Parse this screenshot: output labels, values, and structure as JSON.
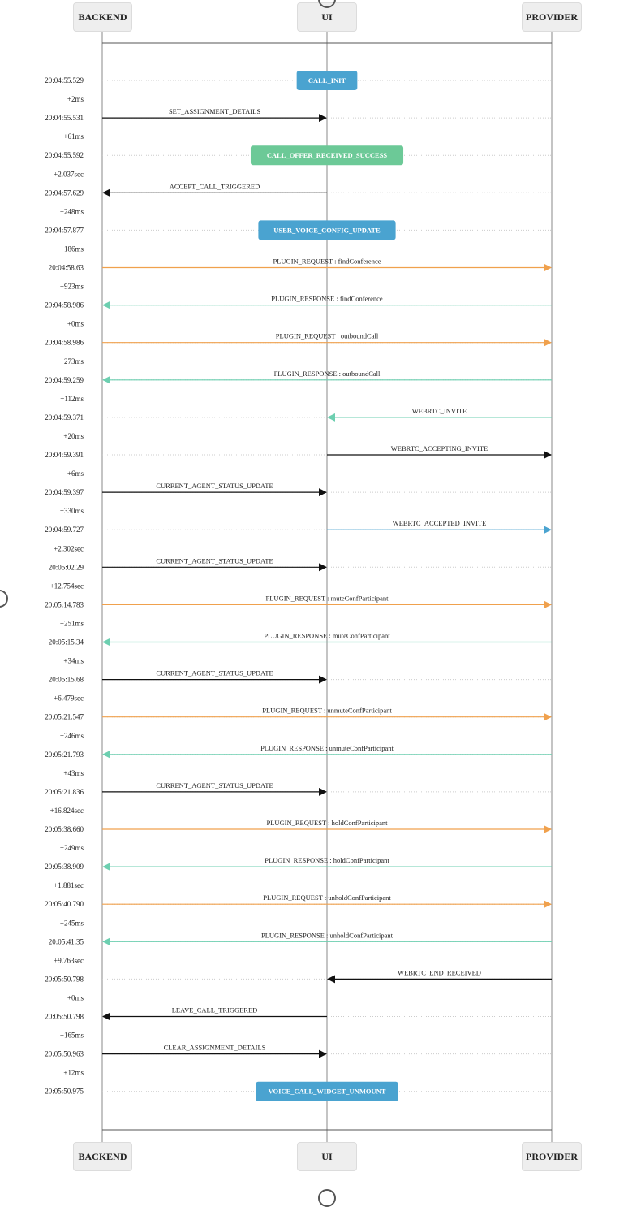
{
  "actors": [
    "BACKEND",
    "UI",
    "PROVIDER"
  ],
  "colors": {
    "request": "#f0a14d",
    "response": "#6dcfb0",
    "internal": "#111111",
    "event_blue": "#4aa3d0",
    "event_green": "#6cc997",
    "lifeline": "#888888",
    "grid": "#cccccc",
    "text": "#222222"
  },
  "rows": [
    {
      "time": "20:04:55.529",
      "delta": "",
      "type": "event",
      "actor": "UI",
      "label": "CALL_INIT",
      "color": "event_blue"
    },
    {
      "time": "20:04:55.531",
      "delta": "+2ms",
      "type": "msg",
      "from": "BACKEND",
      "to": "UI",
      "label": "SET_ASSIGNMENT_DETAILS",
      "color": "internal"
    },
    {
      "time": "20:04:55.592",
      "delta": "+61ms",
      "type": "event",
      "actor": "UI",
      "label": "CALL_OFFER_RECEIVED_SUCCESS",
      "color": "event_green"
    },
    {
      "time": "20:04:57.629",
      "delta": "+2.037sec",
      "type": "msg",
      "from": "UI",
      "to": "BACKEND",
      "label": "ACCEPT_CALL_TRIGGERED",
      "color": "internal"
    },
    {
      "time": "20:04:57.877",
      "delta": "+248ms",
      "type": "event",
      "actor": "UI",
      "label": "USER_VOICE_CONFIG_UPDATE",
      "color": "event_blue"
    },
    {
      "time": "20:04:58.63",
      "delta": "+186ms",
      "type": "msg",
      "from": "BACKEND",
      "to": "PROVIDER",
      "label": "PLUGIN_REQUEST : findConference",
      "color": "request"
    },
    {
      "time": "20:04:58.986",
      "delta": "+923ms",
      "type": "msg",
      "from": "PROVIDER",
      "to": "BACKEND",
      "label": "PLUGIN_RESPONSE : findConference",
      "color": "response"
    },
    {
      "time": "20:04:58.986",
      "delta": "+0ms",
      "type": "msg",
      "from": "BACKEND",
      "to": "PROVIDER",
      "label": "PLUGIN_REQUEST : outboundCall",
      "color": "request"
    },
    {
      "time": "20:04:59.259",
      "delta": "+273ms",
      "type": "msg",
      "from": "PROVIDER",
      "to": "BACKEND",
      "label": "PLUGIN_RESPONSE : outboundCall",
      "color": "response"
    },
    {
      "time": "20:04:59.371",
      "delta": "+112ms",
      "type": "msg",
      "from": "PROVIDER",
      "to": "UI",
      "label": "WEBRTC_INVITE",
      "color": "response"
    },
    {
      "time": "20:04:59.391",
      "delta": "+20ms",
      "type": "msg",
      "from": "UI",
      "to": "PROVIDER",
      "label": "WEBRTC_ACCEPTING_INVITE",
      "color": "internal"
    },
    {
      "time": "20:04:59.397",
      "delta": "+6ms",
      "type": "msg",
      "from": "BACKEND",
      "to": "UI",
      "label": "CURRENT_AGENT_STATUS_UPDATE",
      "color": "internal"
    },
    {
      "time": "20:04:59.727",
      "delta": "+330ms",
      "type": "msg",
      "from": "UI",
      "to": "PROVIDER",
      "label": "WEBRTC_ACCEPTED_INVITE",
      "color": "event_blue"
    },
    {
      "time": "20:05:02.29",
      "delta": "+2.302sec",
      "type": "msg",
      "from": "BACKEND",
      "to": "UI",
      "label": "CURRENT_AGENT_STATUS_UPDATE",
      "color": "internal"
    },
    {
      "time": "20:05:14.783",
      "delta": "+12.754sec",
      "type": "msg",
      "from": "BACKEND",
      "to": "PROVIDER",
      "label": "PLUGIN_REQUEST : muteConfParticipant",
      "color": "request"
    },
    {
      "time": "20:05:15.34",
      "delta": "+251ms",
      "type": "msg",
      "from": "PROVIDER",
      "to": "BACKEND",
      "label": "PLUGIN_RESPONSE : muteConfParticipant",
      "color": "response"
    },
    {
      "time": "20:05:15.68",
      "delta": "+34ms",
      "type": "msg",
      "from": "BACKEND",
      "to": "UI",
      "label": "CURRENT_AGENT_STATUS_UPDATE",
      "color": "internal"
    },
    {
      "time": "20:05:21.547",
      "delta": "+6.479sec",
      "type": "msg",
      "from": "BACKEND",
      "to": "PROVIDER",
      "label": "PLUGIN_REQUEST : unmuteConfParticipant",
      "color": "request"
    },
    {
      "time": "20:05:21.793",
      "delta": "+246ms",
      "type": "msg",
      "from": "PROVIDER",
      "to": "BACKEND",
      "label": "PLUGIN_RESPONSE : unmuteConfParticipant",
      "color": "response"
    },
    {
      "time": "20:05:21.836",
      "delta": "+43ms",
      "type": "msg",
      "from": "BACKEND",
      "to": "UI",
      "label": "CURRENT_AGENT_STATUS_UPDATE",
      "color": "internal"
    },
    {
      "time": "20:05:38.660",
      "delta": "+16.824sec",
      "type": "msg",
      "from": "BACKEND",
      "to": "PROVIDER",
      "label": "PLUGIN_REQUEST : holdConfParticipant",
      "color": "request"
    },
    {
      "time": "20:05:38.909",
      "delta": "+249ms",
      "type": "msg",
      "from": "PROVIDER",
      "to": "BACKEND",
      "label": "PLUGIN_RESPONSE : holdConfParticipant",
      "color": "response"
    },
    {
      "time": "20:05:40.790",
      "delta": "+1.881sec",
      "type": "msg",
      "from": "BACKEND",
      "to": "PROVIDER",
      "label": "PLUGIN_REQUEST : unholdConfParticipant",
      "color": "request"
    },
    {
      "time": "20:05:41.35",
      "delta": "+245ms",
      "type": "msg",
      "from": "PROVIDER",
      "to": "BACKEND",
      "label": "PLUGIN_RESPONSE : unholdConfParticipant",
      "color": "response"
    },
    {
      "time": "20:05:50.798",
      "delta": "+9.763sec",
      "type": "msg",
      "from": "PROVIDER",
      "to": "UI",
      "label": "WEBRTC_END_RECEIVED",
      "color": "internal"
    },
    {
      "time": "20:05:50.798",
      "delta": "+0ms",
      "type": "msg",
      "from": "UI",
      "to": "BACKEND",
      "label": "LEAVE_CALL_TRIGGERED",
      "color": "internal"
    },
    {
      "time": "20:05:50.963",
      "delta": "+165ms",
      "type": "msg",
      "from": "BACKEND",
      "to": "UI",
      "label": "CLEAR_ASSIGNMENT_DETAILS",
      "color": "internal"
    },
    {
      "time": "20:05:50.975",
      "delta": "+12ms",
      "type": "event",
      "actor": "UI",
      "label": "VOICE_CALL_WIDGET_UNMOUNT",
      "color": "event_blue"
    }
  ]
}
